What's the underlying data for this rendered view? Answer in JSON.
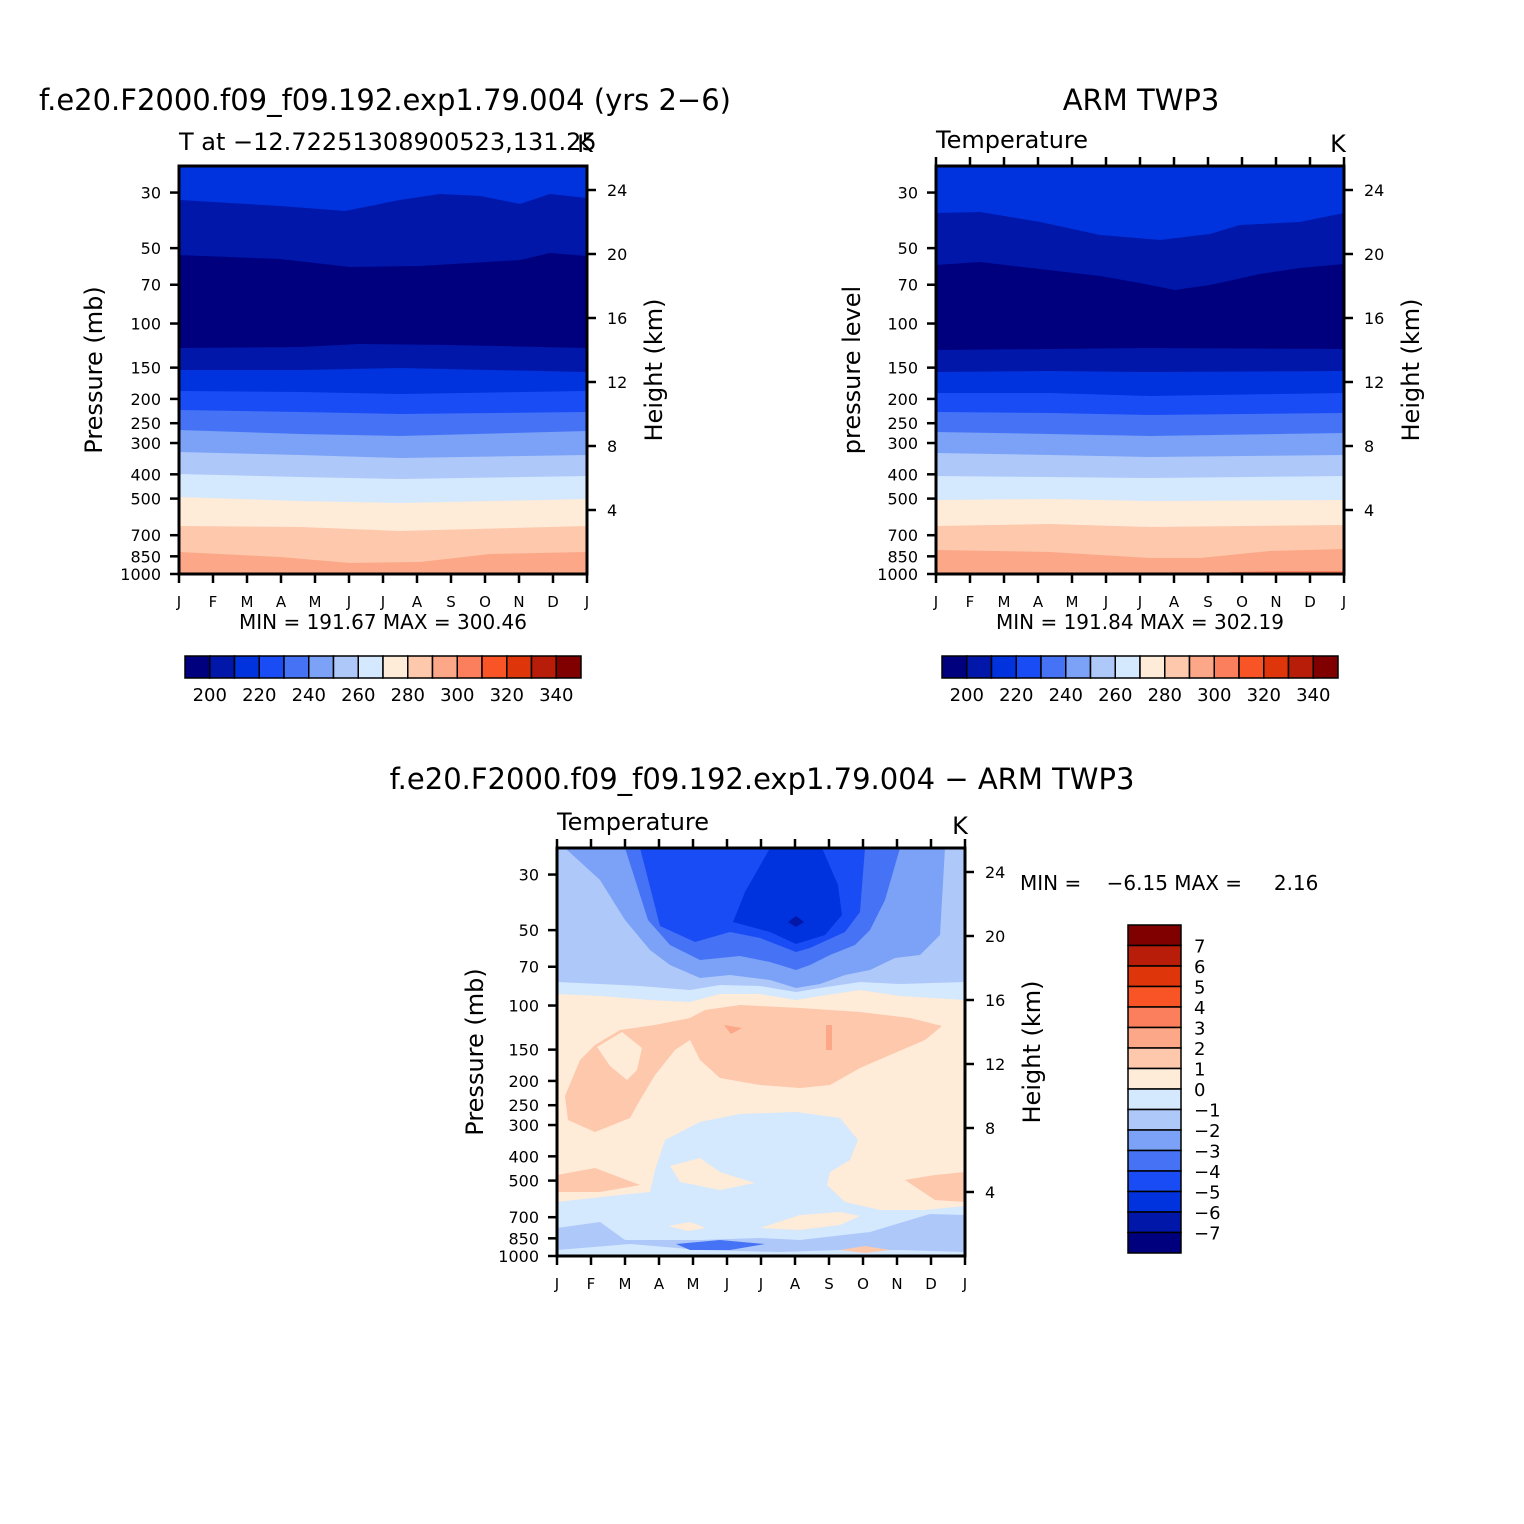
{
  "chart_data": [
    {
      "type": "heatmap",
      "id": "model",
      "title": "f.e20.F2000.f09_f09.192.exp1.79.004 (yrs 2−6)",
      "left_string": "T at −12.72251308900523,131.25",
      "right_string": "K",
      "ylabel": "Pressure (mb)",
      "y2label": "Height (km)",
      "x_ticks": [
        "J",
        "F",
        "M",
        "A",
        "M",
        "J",
        "J",
        "A",
        "S",
        "O",
        "N",
        "D",
        "J"
      ],
      "y_ticks": [
        "30",
        "50",
        "70",
        "100",
        "150",
        "200",
        "250",
        "300",
        "400",
        "500",
        "700",
        "850",
        "1000"
      ],
      "y2_ticks": [
        "24",
        "20",
        "16",
        "12",
        "8",
        "4"
      ],
      "stats": "MIN = 191.67 MAX = 300.46",
      "min": 191.67,
      "max": 300.46,
      "colorbar_labels": [
        "200",
        "220",
        "240",
        "260",
        "280",
        "300",
        "320",
        "340"
      ],
      "colorbar_orientation": "horizontal",
      "colorbar_colors": [
        "#00007f",
        "#0017a9",
        "#0032dd",
        "#1a4cf6",
        "#4673f5",
        "#7ba2f6",
        "#aec8fa",
        "#d4e8fe",
        "#feebd8",
        "#fdc8ac",
        "#fca787",
        "#fb7f5c",
        "#f85425",
        "#de350b",
        "#b81d0a",
        "#800000"
      ]
    },
    {
      "type": "heatmap",
      "id": "obs",
      "title": "ARM TWP3",
      "left_string": "Temperature",
      "right_string": "K",
      "ylabel": "pressure level",
      "y2label": "Height (km)",
      "x_ticks": [
        "J",
        "F",
        "M",
        "A",
        "M",
        "J",
        "J",
        "A",
        "S",
        "O",
        "N",
        "D",
        "J"
      ],
      "y_ticks": [
        "30",
        "50",
        "70",
        "100",
        "150",
        "200",
        "250",
        "300",
        "400",
        "500",
        "700",
        "850",
        "1000"
      ],
      "y2_ticks": [
        "24",
        "20",
        "16",
        "12",
        "8",
        "4"
      ],
      "stats": "MIN = 191.84 MAX = 302.19",
      "min": 191.84,
      "max": 302.19,
      "colorbar_labels": [
        "200",
        "220",
        "240",
        "260",
        "280",
        "300",
        "320",
        "340"
      ],
      "colorbar_orientation": "horizontal"
    },
    {
      "type": "heatmap",
      "id": "diff",
      "title": "f.e20.F2000.f09_f09.192.exp1.79.004 − ARM TWP3",
      "left_string": "Temperature",
      "right_string": "K",
      "ylabel": "Pressure (mb)",
      "y2label": "Height (km)",
      "x_ticks": [
        "J",
        "F",
        "M",
        "A",
        "M",
        "J",
        "J",
        "A",
        "S",
        "O",
        "N",
        "D",
        "J"
      ],
      "y_ticks": [
        "30",
        "50",
        "70",
        "100",
        "150",
        "200",
        "250",
        "300",
        "400",
        "500",
        "700",
        "850",
        "1000"
      ],
      "y2_ticks": [
        "24",
        "20",
        "16",
        "12",
        "8",
        "4"
      ],
      "stats": "MIN =    −6.15 MAX =     2.16",
      "min": -6.15,
      "max": 2.16,
      "colorbar_labels": [
        "7",
        "6",
        "5",
        "4",
        "3",
        "2",
        "1",
        "0",
        "−1",
        "−2",
        "−3",
        "−4",
        "−5",
        "−6",
        "−7"
      ],
      "colorbar_orientation": "vertical",
      "colorbar_colors": [
        "#800000",
        "#b81d0a",
        "#de350b",
        "#f85425",
        "#fb7f5c",
        "#fca787",
        "#fdc8ac",
        "#feebd8",
        "#d4e8fe",
        "#aec8fa",
        "#7ba2f6",
        "#4673f5",
        "#1a4cf6",
        "#0032dd",
        "#0017a9",
        "#00007f"
      ]
    }
  ]
}
